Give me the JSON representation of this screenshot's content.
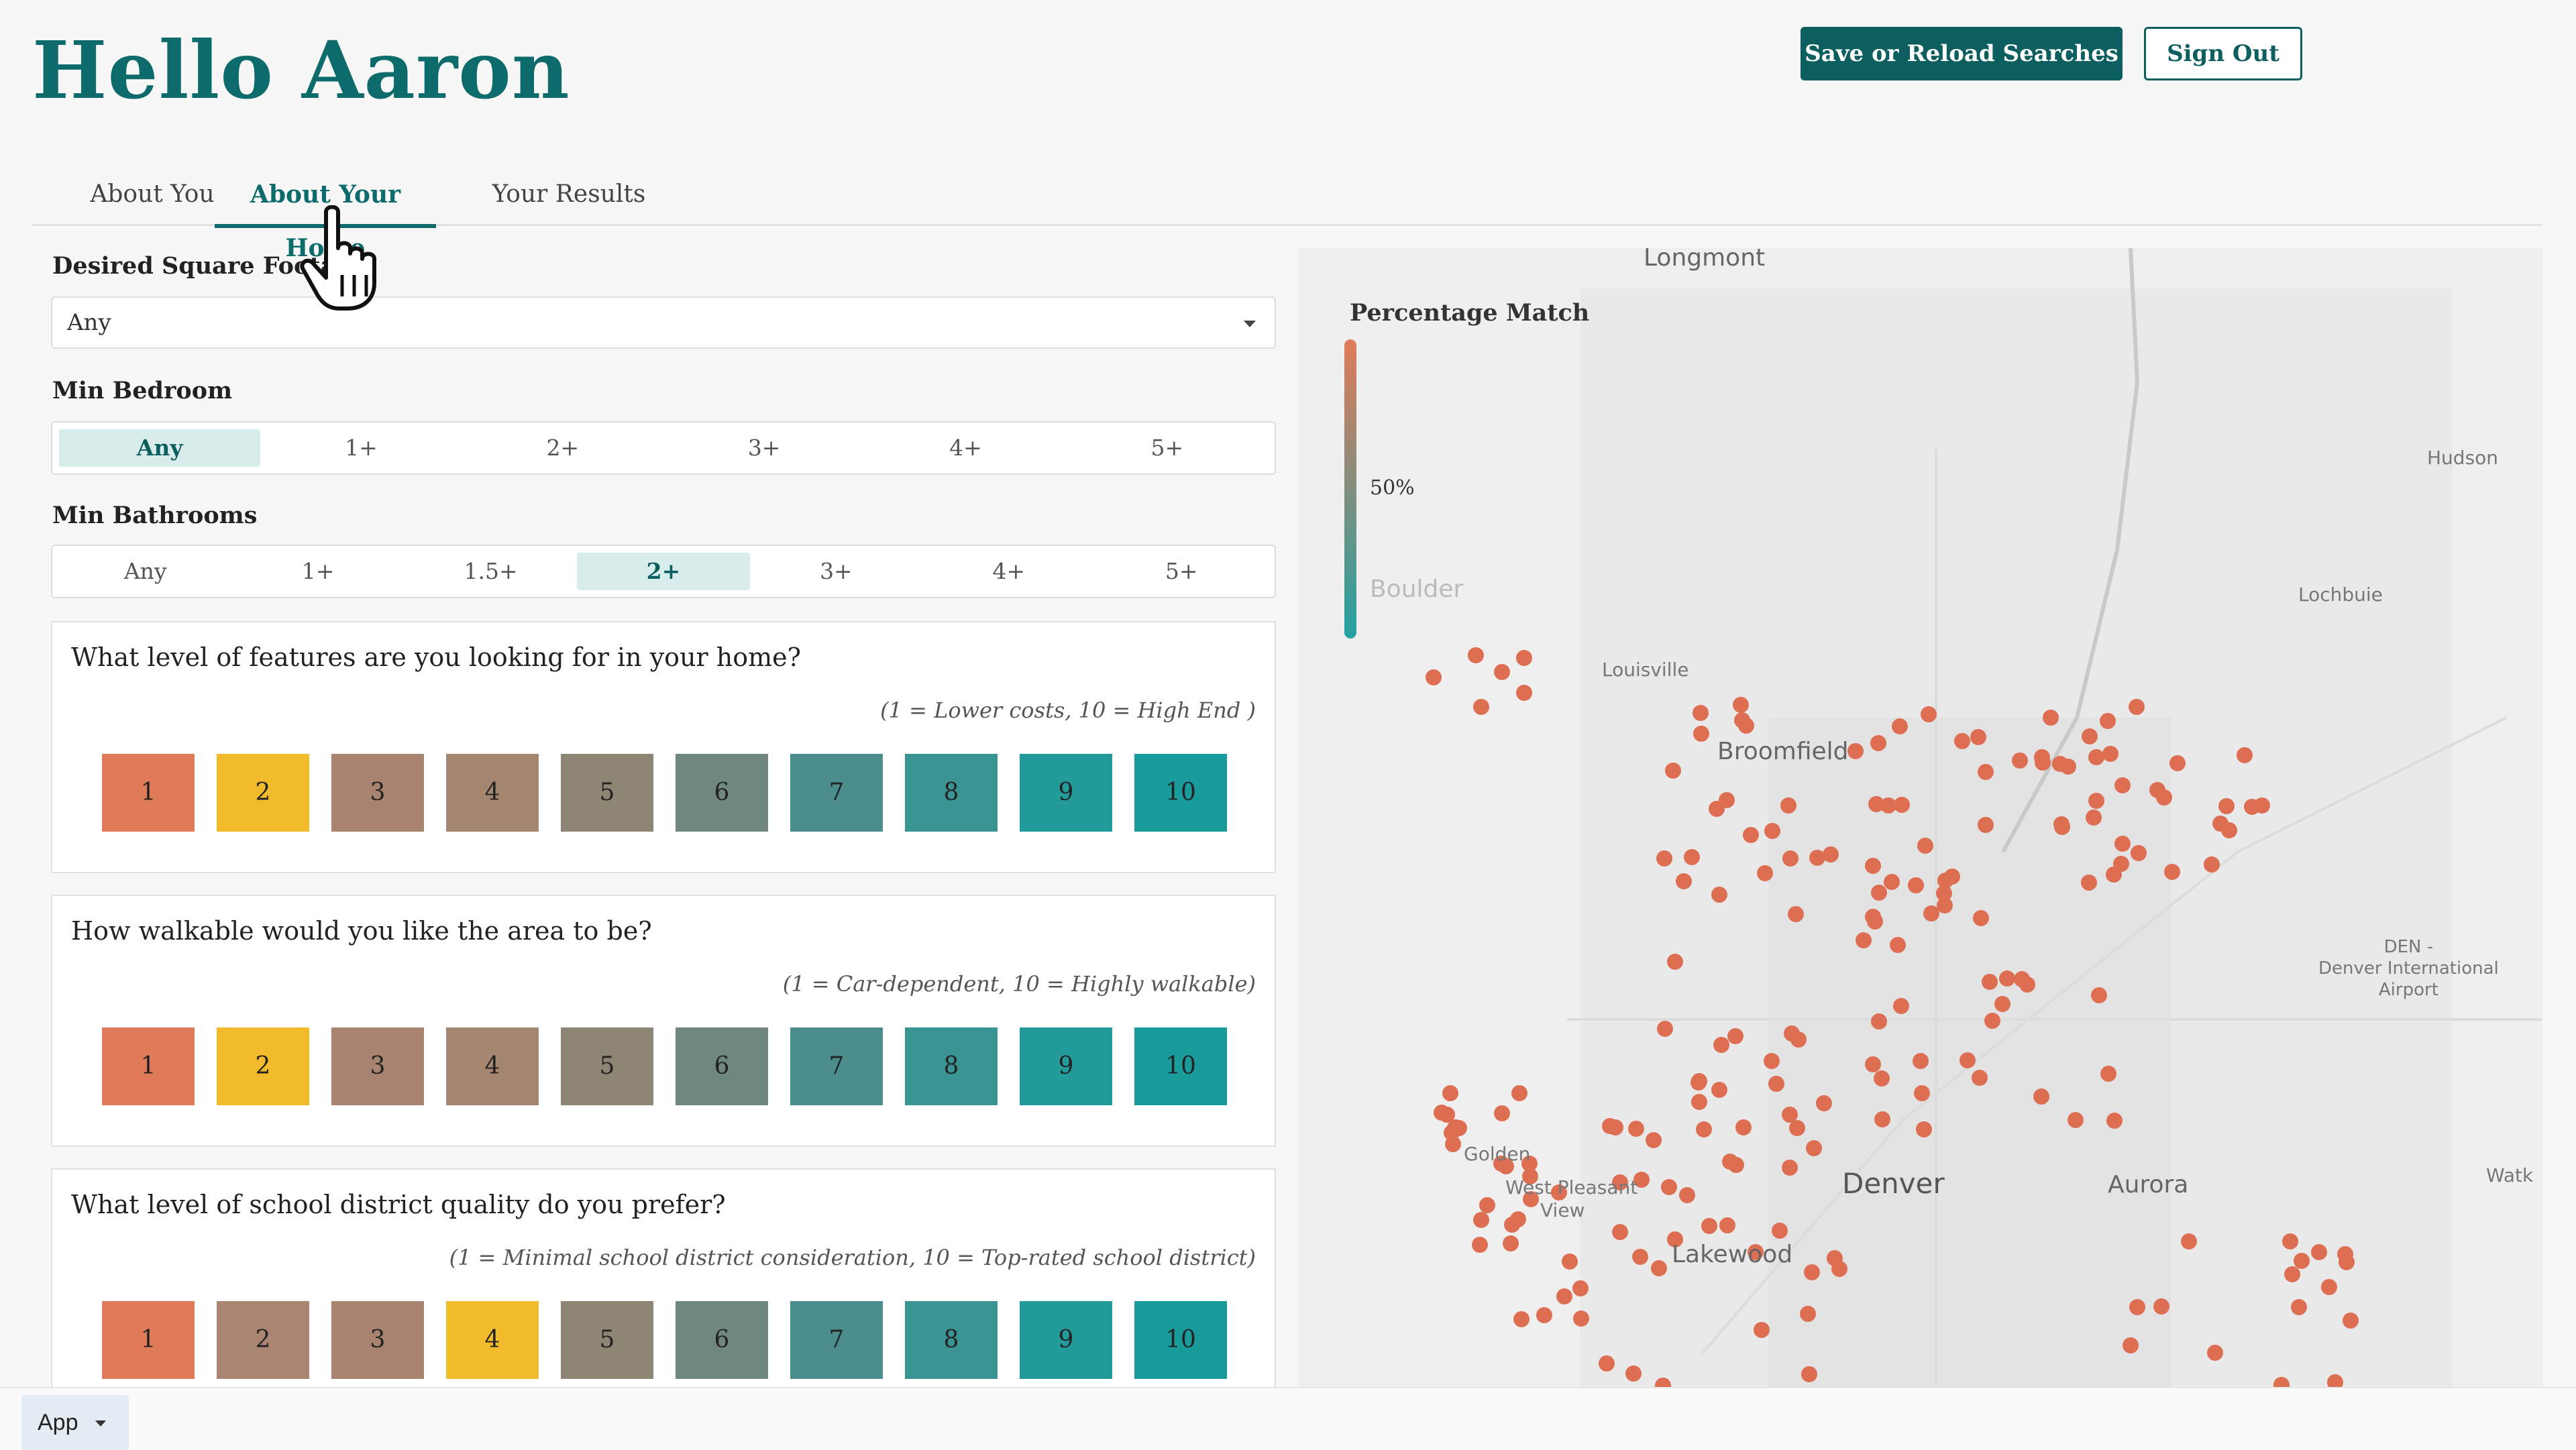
{
  "header": {
    "greeting": "Hello Aaron",
    "save_button": "Save or Reload Searches",
    "signout_button": "Sign Out"
  },
  "tabs": [
    {
      "label": "About You",
      "active": false
    },
    {
      "label": "About Your Home",
      "active": true
    },
    {
      "label": "Your Results",
      "active": false
    }
  ],
  "form": {
    "square_footage": {
      "label": "Desired Square Footage",
      "value": "Any"
    },
    "min_bedroom": {
      "label": "Min Bedroom",
      "options": [
        "Any",
        "1+",
        "2+",
        "3+",
        "4+",
        "5+"
      ],
      "selected": 0
    },
    "min_bathrooms": {
      "label": "Min Bathrooms",
      "options": [
        "Any",
        "1+",
        "1.5+",
        "2+",
        "3+",
        "4+",
        "5+"
      ],
      "selected": 3
    }
  },
  "questions": [
    {
      "question": "What level of features are you looking for in your home?",
      "hint": "(1 = Lower costs, 10 = High End )",
      "options": [
        "1",
        "2",
        "3",
        "4",
        "5",
        "6",
        "7",
        "8",
        "9",
        "10"
      ],
      "selected": "2"
    },
    {
      "question": "How walkable would you like the area to be?",
      "hint": "(1 = Car-dependent, 10 = Highly walkable)",
      "options": [
        "1",
        "2",
        "3",
        "4",
        "5",
        "6",
        "7",
        "8",
        "9",
        "10"
      ],
      "selected": "2"
    },
    {
      "question": "What level of school district quality do you prefer?",
      "hint": "(1 = Minimal school district consideration, 10 = Top-rated school district)",
      "options": [
        "1",
        "2",
        "3",
        "4",
        "5",
        "6",
        "7",
        "8",
        "9",
        "10"
      ],
      "selected": "4"
    }
  ],
  "rating_colors": [
    "#e07b5a",
    "#aa8571",
    "#a88470",
    "#a58671",
    "#8d8675",
    "#6f877f",
    "#4b8d8d",
    "#3b9494",
    "#249b9b",
    "#1a9b9b"
  ],
  "selected_color": "#f2bb2c",
  "map": {
    "legend_title": "Percentage Match",
    "legend_tick": "50%",
    "places": [
      {
        "name": "Longmont",
        "kind": "mid"
      },
      {
        "name": "Hudson",
        "kind": "small"
      },
      {
        "name": "Lochbuie",
        "kind": "small"
      },
      {
        "name": "Boulder",
        "kind": "faded"
      },
      {
        "name": "Louisville",
        "kind": "small"
      },
      {
        "name": "Broomfield",
        "kind": "mid"
      },
      {
        "name": "DEN -\nDenver International\nAirport",
        "kind": "multi"
      },
      {
        "name": "Golden",
        "kind": "small"
      },
      {
        "name": "West Pleasant",
        "kind": "small"
      },
      {
        "name": "View",
        "kind": "small"
      },
      {
        "name": "Denver",
        "kind": "big"
      },
      {
        "name": "Aurora",
        "kind": "mid"
      },
      {
        "name": "Lakewood",
        "kind": "mid"
      },
      {
        "name": "Watk",
        "kind": "small"
      }
    ],
    "dot_color": "#dd6e52"
  },
  "footer": {
    "app_label": "App"
  }
}
